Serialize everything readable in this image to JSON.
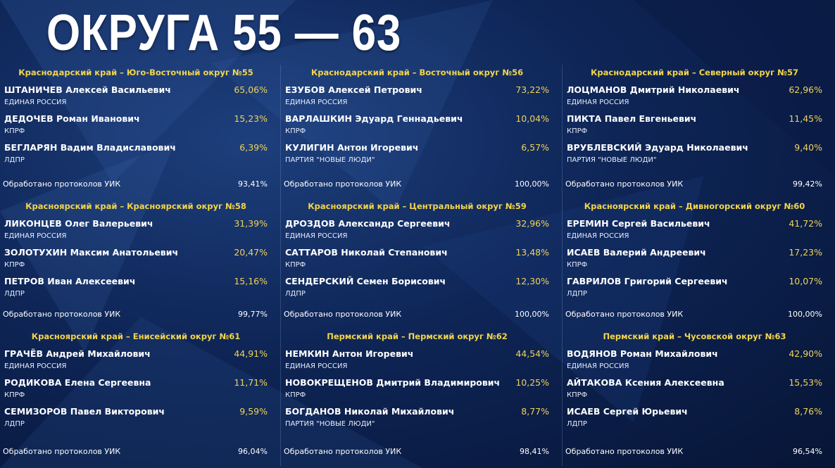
{
  "title": "ОКРУГА 55 — 63",
  "districts": [
    {
      "header": "Краснодарский край – Юго-Восточный округ №55",
      "candidates": [
        {
          "name": "ШТАНИЧЕВ Алексей Васильевич",
          "party": "ЕДИНАЯ РОССИЯ",
          "percent": "65,06%"
        },
        {
          "name": "ДЕДОЧЕВ Роман Иванович",
          "party": "КПРФ",
          "percent": "15,23%"
        },
        {
          "name": "БЕГЛАРЯН Вадим Владиславович",
          "party": "ЛДПР",
          "percent": "6,39%"
        }
      ],
      "processed_label": "Обработано протоколов УИК",
      "processed_value": "93,41%"
    },
    {
      "header": "Краснодарский край – Восточный округ №56",
      "candidates": [
        {
          "name": "ЕЗУБОВ Алексей Петрович",
          "party": "ЕДИНАЯ РОССИЯ",
          "percent": "73,22%"
        },
        {
          "name": "ВАРЛАШКИН Эдуард Геннадьевич",
          "party": "КПРФ",
          "percent": "10,04%"
        },
        {
          "name": "КУЛИГИН Антон Игоревич",
          "party": "ПАРТИЯ \"НОВЫЕ ЛЮДИ\"",
          "percent": "6,57%"
        }
      ],
      "processed_label": "Обработано протоколов УИК",
      "processed_value": "100,00%"
    },
    {
      "header": "Краснодарский край – Северный округ №57",
      "candidates": [
        {
          "name": "ЛОЦМАНОВ Дмитрий Николаевич",
          "party": "ЕДИНАЯ РОССИЯ",
          "percent": "62,96%"
        },
        {
          "name": "ПИКТА Павел Евгеньевич",
          "party": "КПРФ",
          "percent": "11,45%"
        },
        {
          "name": "ВРУБЛЕВСКИЙ Эдуард Николаевич",
          "party": "ПАРТИЯ \"НОВЫЕ ЛЮДИ\"",
          "percent": "9,40%"
        }
      ],
      "processed_label": "Обработано протоколов УИК",
      "processed_value": "99,42%"
    },
    {
      "header": "Красноярский край – Красноярский округ №58",
      "candidates": [
        {
          "name": "ЛИКОНЦЕВ Олег Валерьевич",
          "party": "ЕДИНАЯ РОССИЯ",
          "percent": "31,39%"
        },
        {
          "name": "ЗОЛОТУХИН Максим Анатольевич",
          "party": "КПРФ",
          "percent": "20,47%"
        },
        {
          "name": "ПЕТРОВ Иван Алексеевич",
          "party": "ЛДПР",
          "percent": "15,16%"
        }
      ],
      "processed_label": "Обработано протоколов УИК",
      "processed_value": "99,77%"
    },
    {
      "header": "Красноярский край – Центральный округ №59",
      "candidates": [
        {
          "name": "ДРОЗДОВ Александр Сергеевич",
          "party": "ЕДИНАЯ РОССИЯ",
          "percent": "32,96%"
        },
        {
          "name": "САТТАРОВ Николай Степанович",
          "party": "КПРФ",
          "percent": "13,48%"
        },
        {
          "name": "СЕНДЕРСКИЙ Семен Борисович",
          "party": "ЛДПР",
          "percent": "12,30%"
        }
      ],
      "processed_label": "Обработано протоколов УИК",
      "processed_value": "100,00%"
    },
    {
      "header": "Красноярский край – Дивногорский округ №60",
      "candidates": [
        {
          "name": "ЕРЕМИН Сергей Васильевич",
          "party": "ЕДИНАЯ РОССИЯ",
          "percent": "41,72%"
        },
        {
          "name": "ИСАЕВ Валерий Андреевич",
          "party": "КПРФ",
          "percent": "17,23%"
        },
        {
          "name": "ГАВРИЛОВ Григорий Сергеевич",
          "party": "ЛДПР",
          "percent": "10,07%"
        }
      ],
      "processed_label": "Обработано протоколов УИК",
      "processed_value": "100,00%"
    },
    {
      "header": "Красноярский край – Енисейский округ №61",
      "candidates": [
        {
          "name": "ГРАЧЁВ Андрей Михайлович",
          "party": "ЕДИНАЯ РОССИЯ",
          "percent": "44,91%"
        },
        {
          "name": "РОДИКОВА Елена Сергеевна",
          "party": "КПРФ",
          "percent": "11,71%"
        },
        {
          "name": "СЕМИЗОРОВ Павел Викторович",
          "party": "ЛДПР",
          "percent": "9,59%"
        }
      ],
      "processed_label": "Обработано протоколов УИК",
      "processed_value": "96,04%"
    },
    {
      "header": "Пермский край – Пермский округ №62",
      "candidates": [
        {
          "name": "НЕМКИН Антон Игоревич",
          "party": "ЕДИНАЯ РОССИЯ",
          "percent": "44,54%"
        },
        {
          "name": "НОВОКРЕЩЕНОВ Дмитрий Владимирович",
          "party": "КПРФ",
          "percent": "10,25%"
        },
        {
          "name": "БОГДАНОВ Николай Михайлович",
          "party": "ПАРТИЯ \"НОВЫЕ ЛЮДИ\"",
          "percent": "8,77%"
        }
      ],
      "processed_label": "Обработано протоколов УИК",
      "processed_value": "98,41%"
    },
    {
      "header": "Пермский край – Чусовской округ №63",
      "candidates": [
        {
          "name": "ВОДЯНОВ Роман Михайлович",
          "party": "ЕДИНАЯ РОССИЯ",
          "percent": "42,90%"
        },
        {
          "name": "АЙТАКОВА Ксения Алексеевна",
          "party": "КПРФ",
          "percent": "15,53%"
        },
        {
          "name": "ИСАЕВ Сергей Юрьевич",
          "party": "ЛДПР",
          "percent": "8,76%"
        }
      ],
      "processed_label": "Обработано протоколов УИК",
      "processed_value": "96,54%"
    }
  ]
}
